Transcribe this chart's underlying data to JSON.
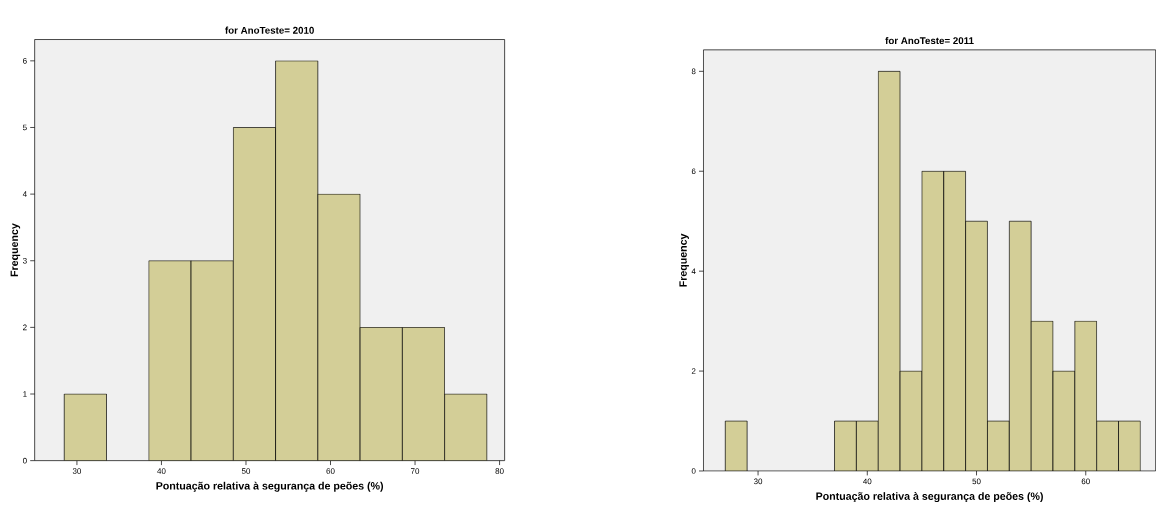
{
  "chart_data": [
    {
      "type": "histogram",
      "title": "for AnoTeste= 2010",
      "xlabel": "Pontuação relativa à segurança de peões (%)",
      "ylabel": "Frequency",
      "bins": [
        28.5,
        33.5,
        38.5,
        43.5,
        48.5,
        53.5,
        58.5,
        63.5,
        68.5,
        73.5,
        78.5
      ],
      "values": [
        1,
        0,
        3,
        3,
        5,
        6,
        4,
        2,
        2,
        1
      ],
      "color": "#d3ce97",
      "xlim": [
        25,
        80.6
      ],
      "ylim": [
        0,
        6.32
      ],
      "xticks": [
        30,
        40,
        50,
        60,
        70,
        80
      ],
      "yticks": [
        0,
        1,
        2,
        3,
        4,
        5,
        6
      ],
      "grid": false
    },
    {
      "type": "histogram",
      "title": "for AnoTeste= 2011",
      "xlabel": "Pontuação relativa à segurança de peões (%)",
      "ylabel": "Frequency",
      "bins": [
        27,
        29,
        31,
        33,
        35,
        37,
        39,
        41,
        43,
        45,
        47,
        49,
        51,
        53,
        55,
        57,
        59,
        61,
        63,
        65
      ],
      "values": [
        1,
        0,
        0,
        0,
        0,
        1,
        1,
        8,
        2,
        6,
        6,
        5,
        1,
        5,
        3,
        2,
        3,
        1,
        1
      ],
      "color": "#d3ce97",
      "xlim": [
        25,
        66.4
      ],
      "ylim": [
        0,
        8.43
      ],
      "xticks": [
        30,
        40,
        50,
        60
      ],
      "yticks": [
        0,
        2,
        4,
        6,
        8
      ],
      "grid": false
    }
  ]
}
